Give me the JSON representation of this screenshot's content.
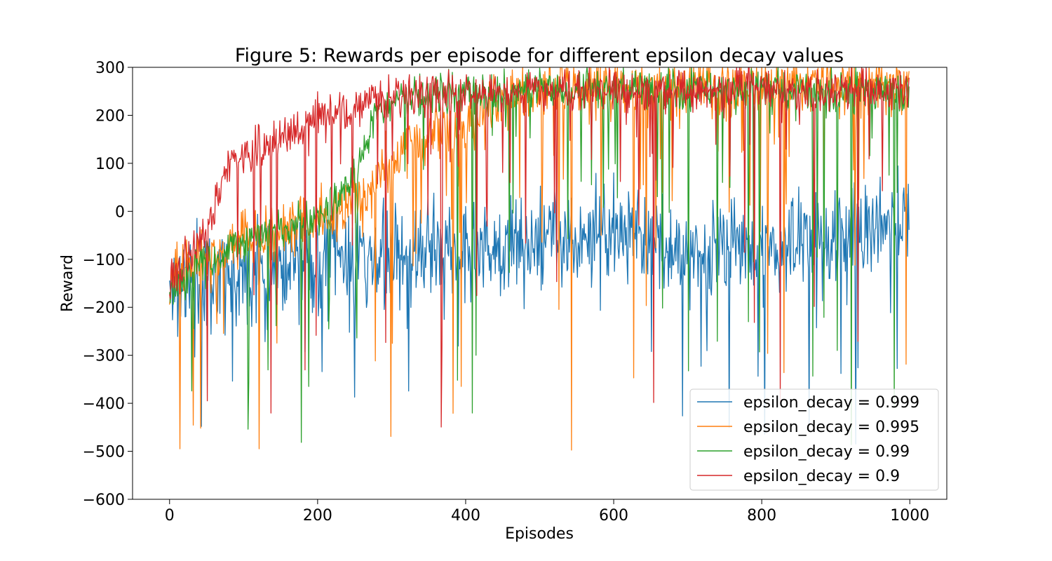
{
  "chart_data": {
    "type": "line",
    "title": "Figure 5: Rewards per episode for different epsilon decay values",
    "xlabel": "Episodes",
    "ylabel": "Reward",
    "xlim": [
      -50,
      1050
    ],
    "ylim": [
      -600,
      300
    ],
    "xticks": [
      0,
      200,
      400,
      600,
      800,
      1000
    ],
    "yticks": [
      -600,
      -500,
      -400,
      -300,
      -200,
      -100,
      0,
      100,
      200,
      300
    ],
    "x_tick_labels": [
      "0",
      "200",
      "400",
      "600",
      "800",
      "1000"
    ],
    "y_tick_labels": [
      "−600",
      "−500",
      "−400",
      "−300",
      "−200",
      "−100",
      "0",
      "100",
      "200",
      "300"
    ],
    "grid": false,
    "legend_position": "lower-right",
    "n_episodes": 1000,
    "series": [
      {
        "name": "epsilon_decay = 0.999",
        "legend_label": "epsilon_decay = 0.999",
        "color": "#1f77b4",
        "trend_x": [
          0,
          20,
          50,
          100,
          150,
          200,
          250,
          300,
          350,
          400,
          450,
          500,
          550,
          600,
          650,
          700,
          750,
          800,
          850,
          900,
          950,
          1000
        ],
        "trend_y": [
          -160,
          -150,
          -140,
          -120,
          -110,
          -100,
          -90,
          -85,
          -80,
          -80,
          -75,
          -60,
          -50,
          -45,
          -60,
          -80,
          -85,
          -75,
          -65,
          -55,
          -40,
          -30
        ],
        "noise": 75,
        "spike_prob": 0.04,
        "spike_min": -500,
        "spike_max": 160,
        "seed": 11
      },
      {
        "name": "epsilon_decay = 0.995",
        "legend_label": "epsilon_decay = 0.995",
        "color": "#ff7f0e",
        "trend_x": [
          0,
          30,
          100,
          150,
          200,
          250,
          300,
          320,
          400,
          450,
          500,
          550,
          600,
          650,
          700,
          750,
          800,
          850,
          900,
          950,
          1000
        ],
        "trend_y": [
          -150,
          -110,
          -60,
          -40,
          -20,
          20,
          90,
          150,
          190,
          230,
          255,
          260,
          262,
          258,
          258,
          258,
          258,
          260,
          262,
          262,
          262
        ],
        "noise": 45,
        "spike_prob": 0.06,
        "spike_min": -500,
        "spike_max": 300,
        "seed": 23
      },
      {
        "name": "epsilon_decay = 0.99",
        "legend_label": "epsilon_decay = 0.99",
        "color": "#2ca02c",
        "trend_x": [
          0,
          30,
          100,
          150,
          200,
          250,
          280,
          320,
          400,
          500,
          600,
          700,
          800,
          900,
          1000
        ],
        "trend_y": [
          -170,
          -120,
          -70,
          -40,
          -10,
          70,
          210,
          240,
          250,
          255,
          255,
          252,
          252,
          250,
          250
        ],
        "noise": 30,
        "spike_prob": 0.05,
        "spike_min": -490,
        "spike_max": 300,
        "seed": 37
      },
      {
        "name": "epsilon_decay = 0.9",
        "legend_label": "epsilon_decay = 0.9",
        "color": "#d62728",
        "trend_x": [
          0,
          30,
          60,
          80,
          120,
          160,
          200,
          250,
          300,
          400,
          500,
          600,
          700,
          800,
          900,
          1000
        ],
        "trend_y": [
          -150,
          -80,
          0,
          100,
          130,
          160,
          200,
          215,
          240,
          250,
          252,
          252,
          250,
          250,
          248,
          250
        ],
        "noise": 30,
        "spike_prob": 0.05,
        "spike_min": -460,
        "spike_max": 300,
        "seed": 53
      }
    ]
  }
}
